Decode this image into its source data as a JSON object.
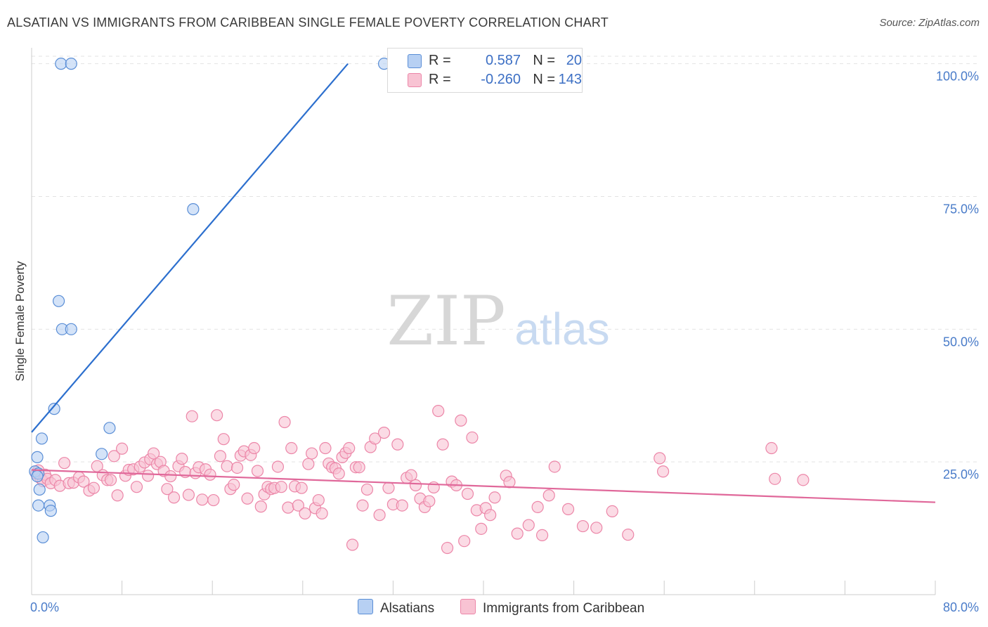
{
  "title": "ALSATIAN VS IMMIGRANTS FROM CARIBBEAN SINGLE FEMALE POVERTY CORRELATION CHART",
  "source": "Source: ZipAtlas.com",
  "watermark": {
    "zip": "ZIP",
    "atlas": "atlas"
  },
  "colors": {
    "blue_fill": "#b7d0f3",
    "blue_stroke": "#5a8ed6",
    "blue_line": "#2c6fce",
    "pink_fill": "#f8c3d3",
    "pink_stroke": "#ec86a8",
    "pink_line": "#e0689a",
    "tick_text": "#4a7cc9",
    "grid": "#e3e3e3"
  },
  "legend": {
    "rows": [
      {
        "r_label": "R =",
        "r_value": "0.587",
        "n_label": "N =",
        "n_value": "20"
      },
      {
        "r_label": "R =",
        "r_value": "-0.260",
        "n_label": "N =",
        "n_value": "143"
      }
    ]
  },
  "bottom_legend": {
    "alsatians": "Alsatians",
    "caribbean": "Immigrants from Caribbean"
  },
  "chart_data": {
    "type": "scatter",
    "title": "ALSATIAN VS IMMIGRANTS FROM CARIBBEAN SINGLE FEMALE POVERTY CORRELATION CHART",
    "xlabel": "",
    "ylabel": "Single Female Poverty",
    "xlim": [
      0,
      80
    ],
    "ylim": [
      0,
      103
    ],
    "x_tick_labels": [
      "0.0%",
      "80.0%"
    ],
    "y_ticks": [
      25,
      50,
      75,
      100
    ],
    "y_tick_labels": [
      "25.0%",
      "50.0%",
      "75.0%",
      "100.0%"
    ],
    "grid": true,
    "legend_position": "top-center",
    "series": [
      {
        "name": "Alsatians",
        "color": "#5a8ed6",
        "points": [
          [
            2.6,
            100
          ],
          [
            3.5,
            100
          ],
          [
            31.2,
            100
          ],
          [
            14.3,
            72.6
          ],
          [
            2.4,
            55.3
          ],
          [
            2.7,
            50
          ],
          [
            3.5,
            50
          ],
          [
            2.0,
            35
          ],
          [
            6.9,
            31.4
          ],
          [
            0.9,
            29.4
          ],
          [
            6.2,
            26.5
          ],
          [
            0.5,
            25.9
          ],
          [
            0.3,
            23.2
          ],
          [
            0.6,
            22.8
          ],
          [
            0.5,
            22.3
          ],
          [
            0.7,
            19.8
          ],
          [
            0.6,
            16.8
          ],
          [
            1.6,
            16.8
          ],
          [
            1.7,
            15.8
          ],
          [
            1.0,
            10.8
          ]
        ],
        "trend": {
          "x": [
            0,
            28
          ],
          "y": [
            30.6,
            100
          ]
        }
      },
      {
        "name": "Immigrants from Caribbean",
        "color": "#ec86a8",
        "points": [
          [
            0.4,
            22.8
          ],
          [
            0.6,
            23.4
          ],
          [
            0.8,
            21.9
          ],
          [
            1.0,
            21.4
          ],
          [
            1.2,
            22.6
          ],
          [
            1.4,
            21.8
          ],
          [
            1.7,
            21.0
          ],
          [
            2.1,
            21.6
          ],
          [
            2.5,
            20.5
          ],
          [
            2.9,
            24.8
          ],
          [
            3.3,
            21.0
          ],
          [
            3.7,
            21.1
          ],
          [
            4.2,
            22.1
          ],
          [
            4.6,
            21.3
          ],
          [
            5.1,
            19.6
          ],
          [
            5.5,
            20.1
          ],
          [
            5.8,
            24.2
          ],
          [
            6.3,
            22.5
          ],
          [
            6.7,
            21.6
          ],
          [
            7.0,
            21.6
          ],
          [
            7.3,
            26.1
          ],
          [
            7.6,
            18.7
          ],
          [
            8.0,
            27.5
          ],
          [
            8.3,
            22.4
          ],
          [
            8.6,
            23.5
          ],
          [
            9.0,
            23.6
          ],
          [
            9.3,
            20.3
          ],
          [
            9.6,
            24.1
          ],
          [
            10.0,
            24.9
          ],
          [
            10.3,
            22.4
          ],
          [
            10.5,
            25.5
          ],
          [
            10.8,
            26.6
          ],
          [
            11.1,
            24.6
          ],
          [
            11.4,
            25.0
          ],
          [
            11.7,
            23.3
          ],
          [
            12.0,
            19.9
          ],
          [
            12.3,
            22.3
          ],
          [
            12.6,
            18.3
          ],
          [
            13.0,
            24.2
          ],
          [
            13.3,
            25.6
          ],
          [
            13.6,
            23.1
          ],
          [
            13.9,
            18.8
          ],
          [
            14.2,
            33.6
          ],
          [
            14.5,
            22.9
          ],
          [
            14.8,
            24.0
          ],
          [
            15.1,
            17.9
          ],
          [
            15.4,
            23.6
          ],
          [
            15.8,
            22.6
          ],
          [
            16.1,
            17.8
          ],
          [
            16.4,
            33.8
          ],
          [
            16.7,
            26.1
          ],
          [
            17.0,
            29.3
          ],
          [
            17.3,
            24.2
          ],
          [
            17.6,
            19.9
          ],
          [
            17.9,
            20.7
          ],
          [
            18.2,
            23.9
          ],
          [
            18.5,
            26.2
          ],
          [
            18.8,
            27.0
          ],
          [
            19.1,
            18.1
          ],
          [
            19.4,
            26.3
          ],
          [
            19.7,
            27.6
          ],
          [
            20.0,
            23.3
          ],
          [
            20.3,
            16.6
          ],
          [
            20.6,
            18.9
          ],
          [
            20.9,
            20.3
          ],
          [
            21.2,
            19.9
          ],
          [
            21.5,
            20.1
          ],
          [
            21.8,
            24.1
          ],
          [
            22.1,
            20.3
          ],
          [
            22.4,
            32.5
          ],
          [
            22.7,
            16.4
          ],
          [
            23.0,
            27.6
          ],
          [
            23.3,
            20.4
          ],
          [
            23.6,
            16.8
          ],
          [
            23.9,
            20.1
          ],
          [
            24.2,
            15.3
          ],
          [
            24.5,
            24.6
          ],
          [
            24.8,
            26.6
          ],
          [
            25.1,
            16.3
          ],
          [
            25.4,
            17.8
          ],
          [
            25.7,
            15.3
          ],
          [
            26.0,
            27.6
          ],
          [
            26.3,
            24.7
          ],
          [
            26.6,
            24.0
          ],
          [
            26.9,
            23.8
          ],
          [
            27.2,
            22.8
          ],
          [
            27.5,
            25.9
          ],
          [
            27.8,
            26.7
          ],
          [
            28.1,
            27.6
          ],
          [
            28.4,
            9.4
          ],
          [
            28.7,
            24.0
          ],
          [
            29.0,
            24.0
          ],
          [
            29.3,
            16.8
          ],
          [
            29.7,
            19.8
          ],
          [
            30.0,
            27.8
          ],
          [
            30.4,
            29.4
          ],
          [
            30.8,
            15.0
          ],
          [
            31.2,
            30.5
          ],
          [
            31.6,
            20.1
          ],
          [
            32.0,
            17.0
          ],
          [
            32.4,
            28.3
          ],
          [
            32.8,
            16.8
          ],
          [
            33.2,
            22.0
          ],
          [
            33.6,
            22.5
          ],
          [
            34.0,
            20.6
          ],
          [
            34.4,
            18.1
          ],
          [
            34.8,
            16.5
          ],
          [
            35.2,
            17.6
          ],
          [
            35.6,
            20.2
          ],
          [
            36.0,
            34.6
          ],
          [
            36.4,
            28.3
          ],
          [
            36.8,
            8.8
          ],
          [
            37.2,
            21.3
          ],
          [
            37.6,
            20.6
          ],
          [
            38.0,
            32.8
          ],
          [
            38.3,
            10.1
          ],
          [
            38.6,
            19.0
          ],
          [
            39.0,
            29.6
          ],
          [
            39.4,
            15.9
          ],
          [
            39.8,
            12.4
          ],
          [
            40.2,
            16.3
          ],
          [
            40.6,
            15.0
          ],
          [
            41.0,
            18.3
          ],
          [
            42.0,
            22.4
          ],
          [
            42.3,
            21.2
          ],
          [
            43.0,
            11.5
          ],
          [
            44.0,
            13.1
          ],
          [
            44.8,
            16.5
          ],
          [
            45.2,
            11.2
          ],
          [
            45.8,
            18.7
          ],
          [
            46.3,
            24.1
          ],
          [
            47.5,
            16.1
          ],
          [
            48.8,
            12.9
          ],
          [
            55.6,
            25.7
          ],
          [
            50.0,
            12.6
          ],
          [
            51.4,
            15.7
          ],
          [
            52.8,
            11.3
          ],
          [
            55.9,
            23.2
          ],
          [
            65.5,
            27.6
          ],
          [
            65.8,
            21.8
          ],
          [
            68.3,
            21.6
          ]
        ],
        "trend": {
          "x": [
            0,
            80
          ],
          "y": [
            23.5,
            17.4
          ]
        }
      }
    ]
  }
}
